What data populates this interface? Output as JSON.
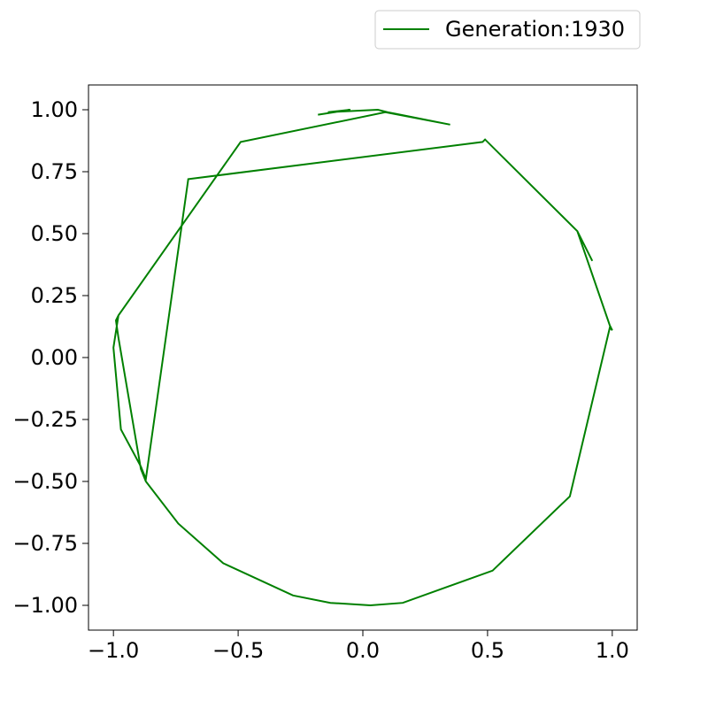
{
  "chart_data": {
    "type": "line",
    "title": "",
    "xlabel": "",
    "ylabel": "",
    "xlim": [
      -1.1,
      1.1
    ],
    "ylim": [
      -1.1,
      1.1
    ],
    "x_ticks": [
      -1.0,
      -0.5,
      0.0,
      0.5,
      1.0
    ],
    "x_tick_labels": [
      "−1.0",
      "−0.5",
      "0.0",
      "0.5",
      "1.0"
    ],
    "y_ticks": [
      1.0,
      0.75,
      0.5,
      0.25,
      0.0,
      -0.25,
      -0.5,
      -0.75,
      -1.0
    ],
    "y_tick_labels": [
      "1.00",
      "0.75",
      "0.50",
      "0.25",
      "0.00",
      "−0.25",
      "−0.50",
      "−0.75",
      "−1.00"
    ],
    "grid": false,
    "legend_position": "top-right, outside plot area",
    "series": [
      {
        "name": "Generation:1930",
        "color": "#008000",
        "x": [
          -0.18,
          -0.05,
          -0.14,
          0.06,
          0.1,
          0.35,
          0.09,
          -0.49,
          -0.98,
          -1.0,
          -0.97,
          -0.89,
          -0.87,
          -0.7,
          0.48,
          0.49,
          0.86,
          0.92,
          0.86,
          0.99,
          1.0,
          0.99,
          0.83,
          0.52,
          0.16,
          0.03,
          -0.13,
          -0.28,
          -0.56,
          -0.74,
          -0.87,
          -0.89,
          -0.98,
          -0.99,
          -0.98
        ],
        "y": [
          0.98,
          1.0,
          0.99,
          1.0,
          0.99,
          0.94,
          0.99,
          0.87,
          0.17,
          0.04,
          -0.29,
          -0.44,
          -0.49,
          0.72,
          0.87,
          0.88,
          0.51,
          0.39,
          0.51,
          0.13,
          0.11,
          0.12,
          -0.56,
          -0.86,
          -0.99,
          -1.0,
          -0.99,
          -0.96,
          -0.83,
          -0.67,
          -0.5,
          -0.45,
          0.08,
          0.15,
          0.17
        ]
      }
    ]
  }
}
